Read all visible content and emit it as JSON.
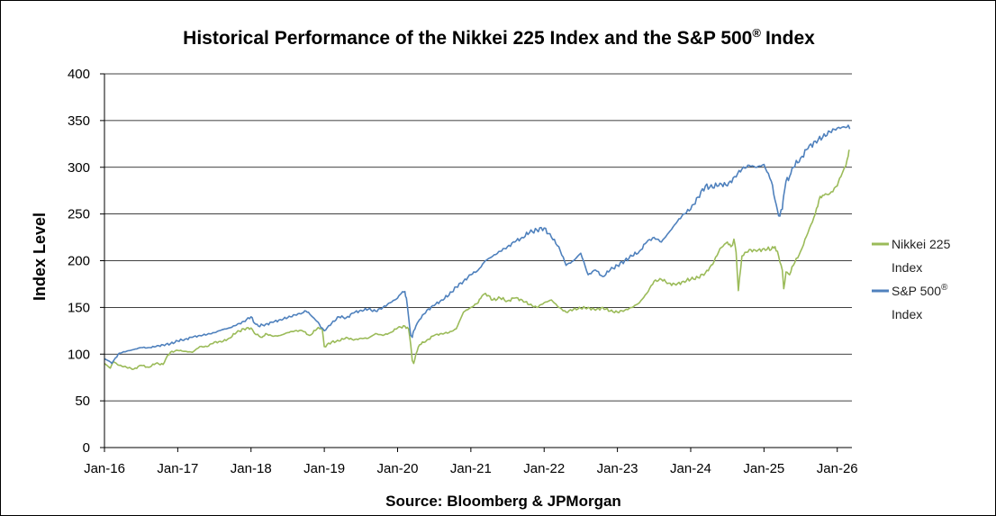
{
  "chart_data": {
    "type": "line",
    "title": "Historical Performance of the Nikkei 225 Index and the S&P 500",
    "title_suffix": "®",
    "title_end": "Index",
    "xlabel": "Source: Bloomberg & JPMorgan",
    "ylabel": "Index Level",
    "ylim": [
      0,
      400
    ],
    "xlim": [
      0,
      10.2
    ],
    "grid": true,
    "legend_position": "right",
    "y_ticks": [
      "0",
      "50",
      "100",
      "150",
      "200",
      "250",
      "300",
      "350",
      "400"
    ],
    "x_ticks": [
      "Jan-16",
      "Jan-17",
      "Jan-18",
      "Jan-19",
      "Jan-20",
      "Jan-21",
      "Jan-22",
      "Jan-23",
      "Jan-24",
      "Jan-25",
      "Jan-26"
    ],
    "series": [
      {
        "name": "Nikkei 225 Index",
        "legend_line1": "Nikkei 225",
        "legend_line2": "Index",
        "color": "#9bbb59",
        "x": [
          0,
          0.08,
          0.12,
          0.2,
          0.3,
          0.4,
          0.5,
          0.6,
          0.7,
          0.8,
          0.85,
          0.9,
          1.0,
          1.1,
          1.2,
          1.3,
          1.4,
          1.5,
          1.6,
          1.7,
          1.8,
          1.9,
          2.0,
          2.05,
          2.15,
          2.2,
          2.3,
          2.4,
          2.5,
          2.6,
          2.7,
          2.8,
          2.9,
          2.97,
          3.0,
          3.1,
          3.2,
          3.3,
          3.4,
          3.5,
          3.6,
          3.7,
          3.8,
          3.9,
          4.0,
          4.1,
          4.15,
          4.18,
          4.2,
          4.22,
          4.25,
          4.3,
          4.4,
          4.5,
          4.6,
          4.7,
          4.8,
          4.9,
          5.0,
          5.1,
          5.15,
          5.2,
          5.3,
          5.4,
          5.5,
          5.6,
          5.7,
          5.8,
          5.9,
          6.0,
          6.1,
          6.2,
          6.3,
          6.4,
          6.5,
          6.6,
          6.7,
          6.8,
          6.9,
          7.0,
          7.1,
          7.2,
          7.3,
          7.4,
          7.5,
          7.6,
          7.7,
          7.8,
          7.9,
          8.0,
          8.1,
          8.2,
          8.3,
          8.4,
          8.5,
          8.55,
          8.59,
          8.62,
          8.65,
          8.7,
          8.8,
          8.9,
          9.0,
          9.1,
          9.15,
          9.2,
          9.25,
          9.27,
          9.3,
          9.35,
          9.4,
          9.5,
          9.6,
          9.7,
          9.75,
          9.8,
          9.9,
          10.0,
          10.05,
          10.1,
          10.15,
          10.17
        ],
        "values": [
          90,
          85,
          92,
          88,
          86,
          84,
          88,
          86,
          90,
          89,
          97,
          102,
          104,
          103,
          102,
          108,
          108,
          113,
          113,
          117,
          123,
          127,
          128,
          122,
          118,
          122,
          119,
          120,
          123,
          125,
          125,
          120,
          127,
          128,
          108,
          113,
          114,
          118,
          115,
          117,
          117,
          122,
          120,
          123,
          128,
          130,
          127,
          110,
          93,
          90,
          100,
          110,
          115,
          120,
          122,
          123,
          127,
          145,
          150,
          155,
          162,
          165,
          158,
          160,
          157,
          160,
          158,
          153,
          150,
          155,
          158,
          150,
          145,
          148,
          149,
          150,
          147,
          150,
          146,
          145,
          147,
          150,
          155,
          165,
          178,
          180,
          176,
          174,
          178,
          180,
          182,
          187,
          196,
          213,
          220,
          215,
          223,
          209,
          168,
          205,
          212,
          210,
          213,
          212,
          215,
          205,
          190,
          170,
          188,
          185,
          195,
          210,
          230,
          250,
          265,
          270,
          272,
          280,
          290,
          300,
          312,
          318
        ]
      },
      {
        "name": "S&P 500 Index",
        "legend_line1": "S&P 500",
        "legend_sup": "®",
        "legend_line2": "Index",
        "color": "#4f81bd",
        "x": [
          0,
          0.05,
          0.1,
          0.15,
          0.2,
          0.3,
          0.4,
          0.5,
          0.6,
          0.7,
          0.8,
          0.9,
          1.0,
          1.1,
          1.2,
          1.3,
          1.4,
          1.5,
          1.6,
          1.7,
          1.8,
          1.9,
          2.0,
          2.05,
          2.1,
          2.2,
          2.3,
          2.4,
          2.5,
          2.6,
          2.7,
          2.75,
          2.8,
          2.9,
          2.97,
          3.0,
          3.1,
          3.2,
          3.3,
          3.4,
          3.5,
          3.6,
          3.7,
          3.8,
          3.9,
          4.0,
          4.05,
          4.1,
          4.12,
          4.15,
          4.18,
          4.2,
          4.22,
          4.25,
          4.3,
          4.4,
          4.5,
          4.6,
          4.7,
          4.8,
          4.9,
          5.0,
          5.1,
          5.2,
          5.3,
          5.4,
          5.5,
          5.6,
          5.7,
          5.8,
          5.9,
          6.0,
          6.1,
          6.2,
          6.3,
          6.4,
          6.5,
          6.6,
          6.7,
          6.8,
          6.9,
          7.0,
          7.1,
          7.2,
          7.3,
          7.4,
          7.5,
          7.6,
          7.7,
          7.8,
          7.9,
          8.0,
          8.1,
          8.2,
          8.3,
          8.4,
          8.5,
          8.6,
          8.7,
          8.8,
          8.9,
          9.0,
          9.1,
          9.15,
          9.2,
          9.25,
          9.27,
          9.3,
          9.35,
          9.4,
          9.5,
          9.6,
          9.7,
          9.8,
          9.9,
          10.0,
          10.1,
          10.15,
          10.17
        ],
        "values": [
          95,
          93,
          90,
          96,
          101,
          103,
          105,
          107,
          107,
          108,
          110,
          111,
          114,
          116,
          118,
          120,
          121,
          123,
          126,
          128,
          131,
          135,
          140,
          133,
          130,
          132,
          134,
          137,
          139,
          142,
          144,
          146,
          143,
          135,
          128,
          125,
          133,
          140,
          139,
          144,
          147,
          148,
          146,
          150,
          155,
          160,
          165,
          167,
          160,
          140,
          120,
          118,
          125,
          130,
          137,
          147,
          152,
          158,
          163,
          172,
          178,
          185,
          190,
          200,
          205,
          210,
          215,
          220,
          225,
          230,
          233,
          235,
          225,
          215,
          195,
          200,
          208,
          185,
          190,
          183,
          190,
          195,
          200,
          205,
          210,
          220,
          225,
          220,
          230,
          240,
          250,
          255,
          268,
          280,
          278,
          283,
          280,
          290,
          298,
          302,
          300,
          303,
          285,
          265,
          248,
          255,
          270,
          285,
          290,
          300,
          310,
          320,
          328,
          332,
          338,
          342,
          343,
          345,
          341
        ]
      }
    ]
  }
}
